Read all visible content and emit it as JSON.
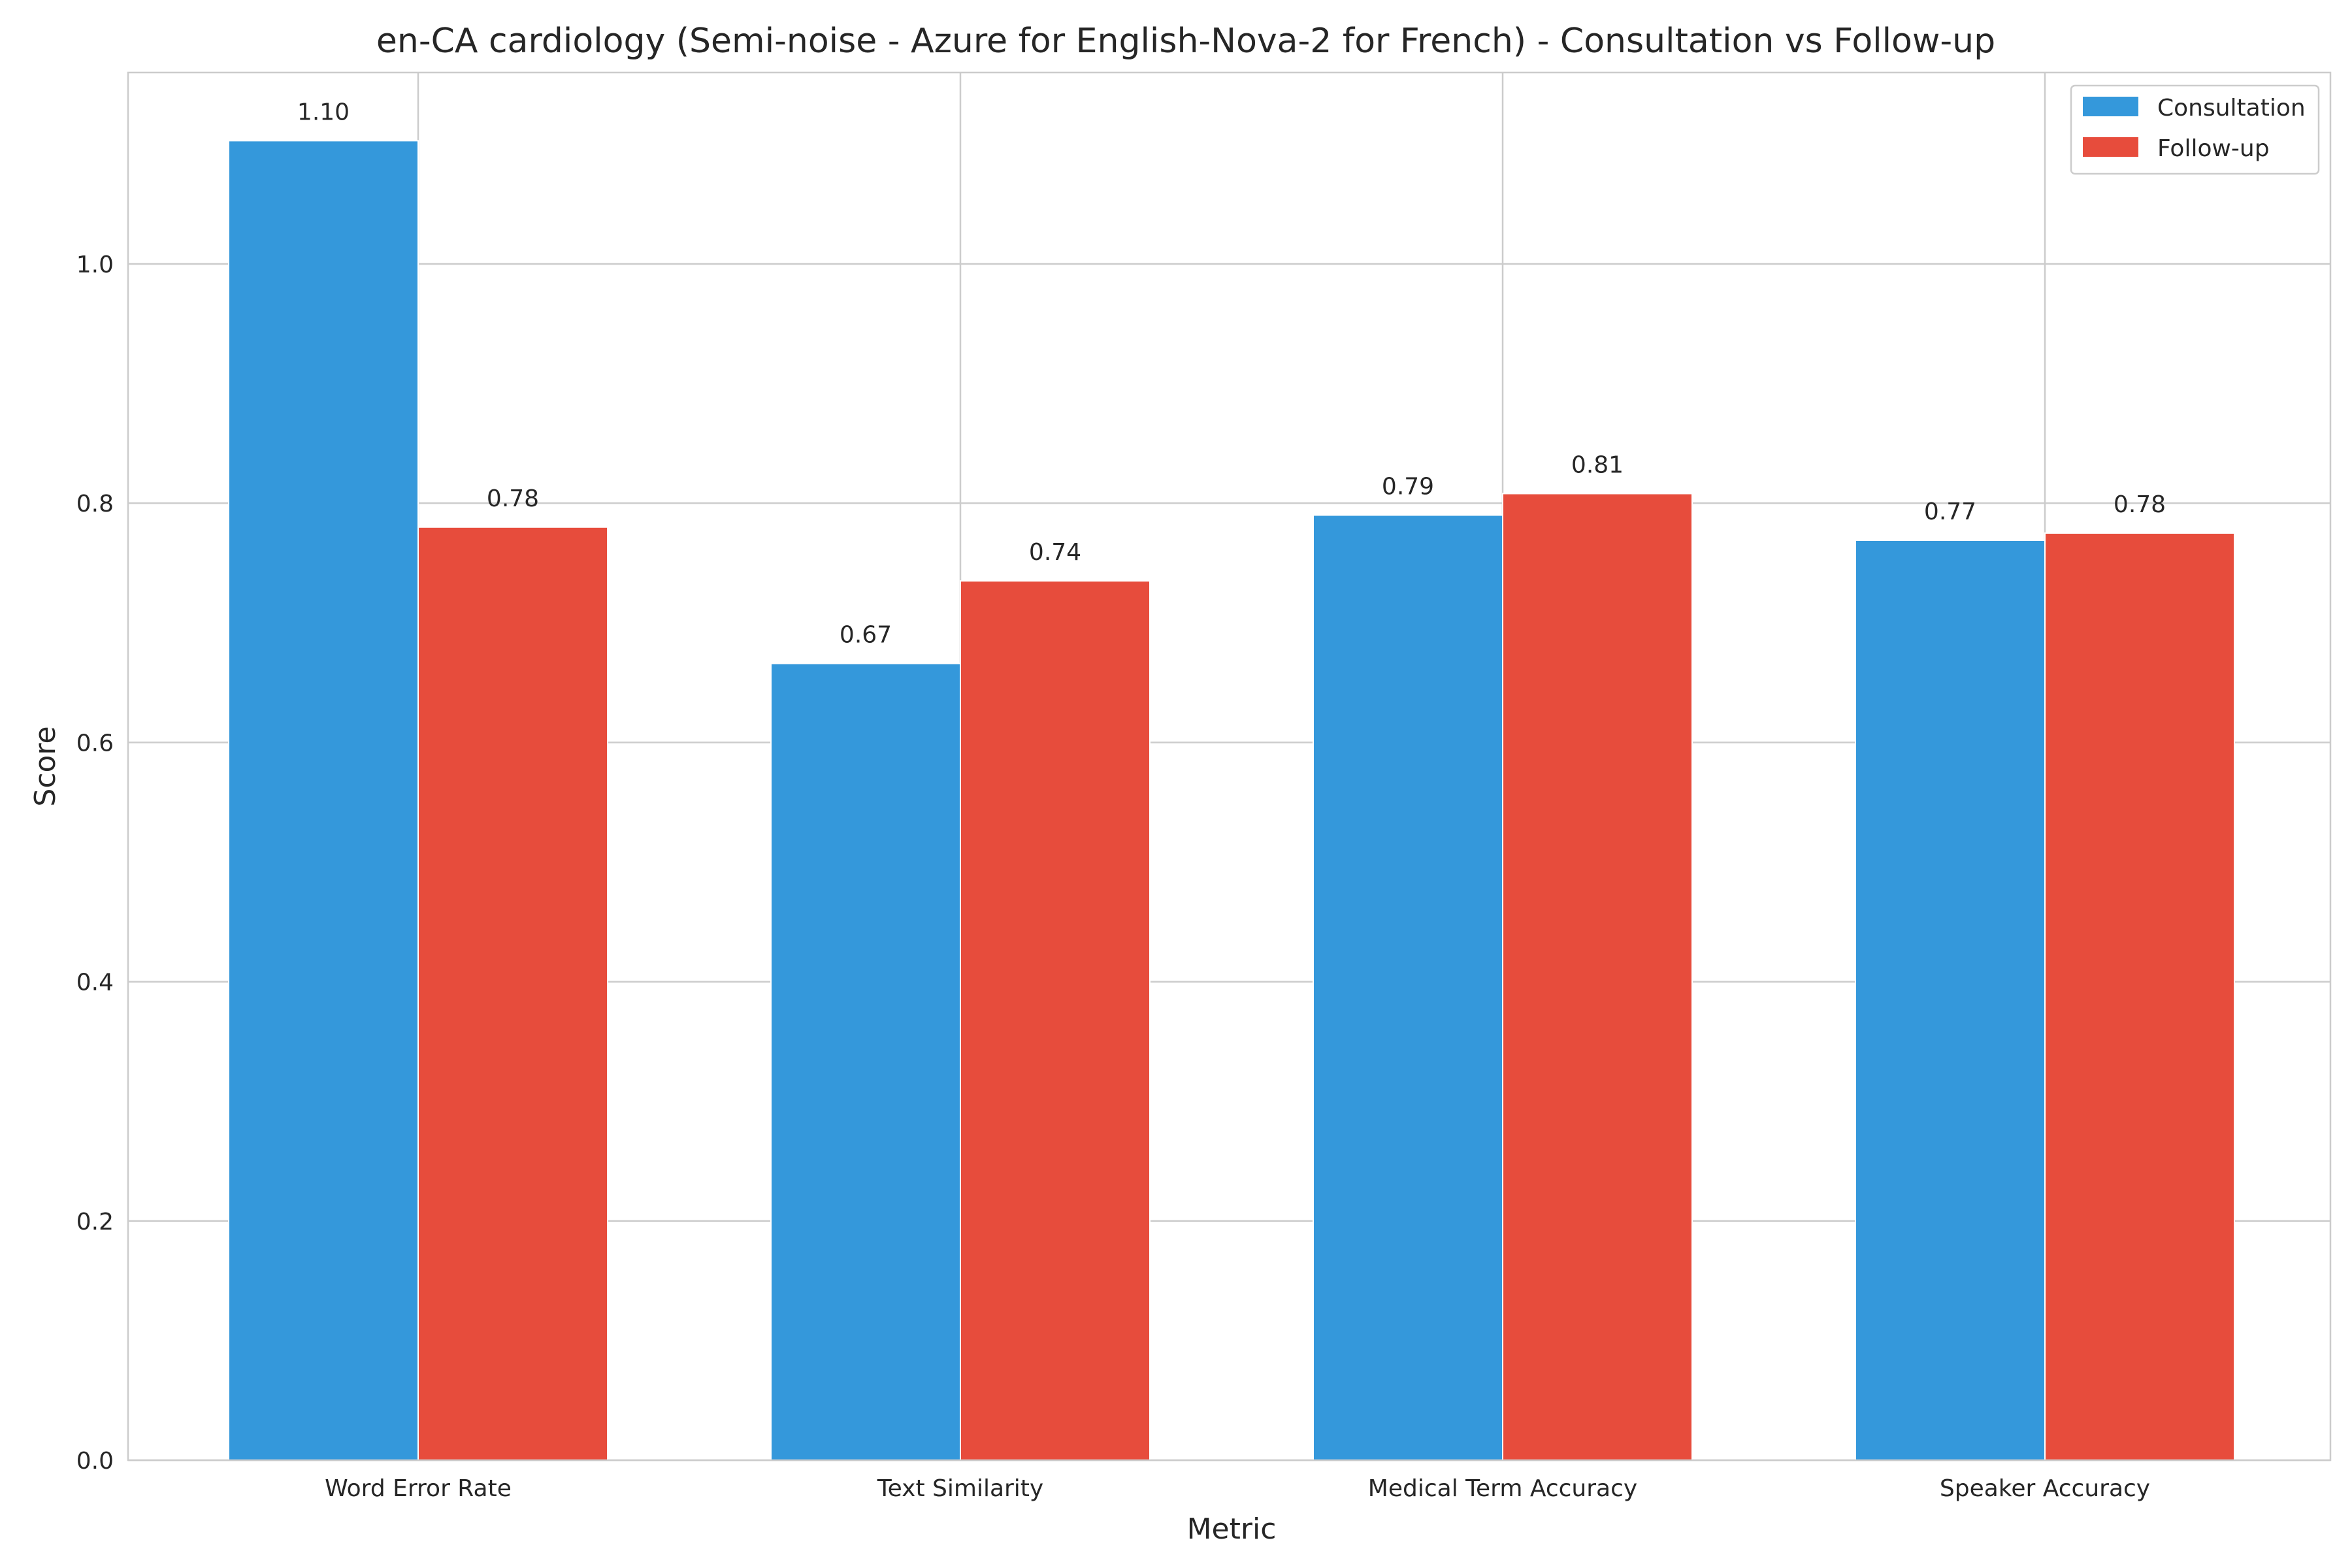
{
  "chart_data": {
    "type": "bar",
    "title": "en-CA cardiology (Semi-noise - Azure for English-Nova-2 for French) - Consultation vs Follow-up",
    "xlabel": "Metric",
    "ylabel": "Score",
    "categories": [
      "Word Error Rate",
      "Text Similarity",
      "Medical Term Accuracy",
      "Speaker Accuracy"
    ],
    "series": [
      {
        "name": "Consultation",
        "color": "#3498db",
        "values": [
          1.103,
          0.666,
          0.79,
          0.769
        ],
        "labels": [
          "1.10",
          "0.67",
          "0.79",
          "0.77"
        ]
      },
      {
        "name": "Follow-up",
        "color": "#e74c3c",
        "values": [
          0.78,
          0.735,
          0.808,
          0.775
        ],
        "labels": [
          "0.78",
          "0.74",
          "0.81",
          "0.78"
        ]
      }
    ],
    "ylim": [
      0,
      1.16
    ],
    "yticks": [
      0.0,
      0.2,
      0.4,
      0.6,
      0.8,
      1.0
    ],
    "ytick_labels": [
      "0.0",
      "0.2",
      "0.4",
      "0.6",
      "0.8",
      "1.0"
    ],
    "grid": true,
    "legend_position": "top-right"
  }
}
